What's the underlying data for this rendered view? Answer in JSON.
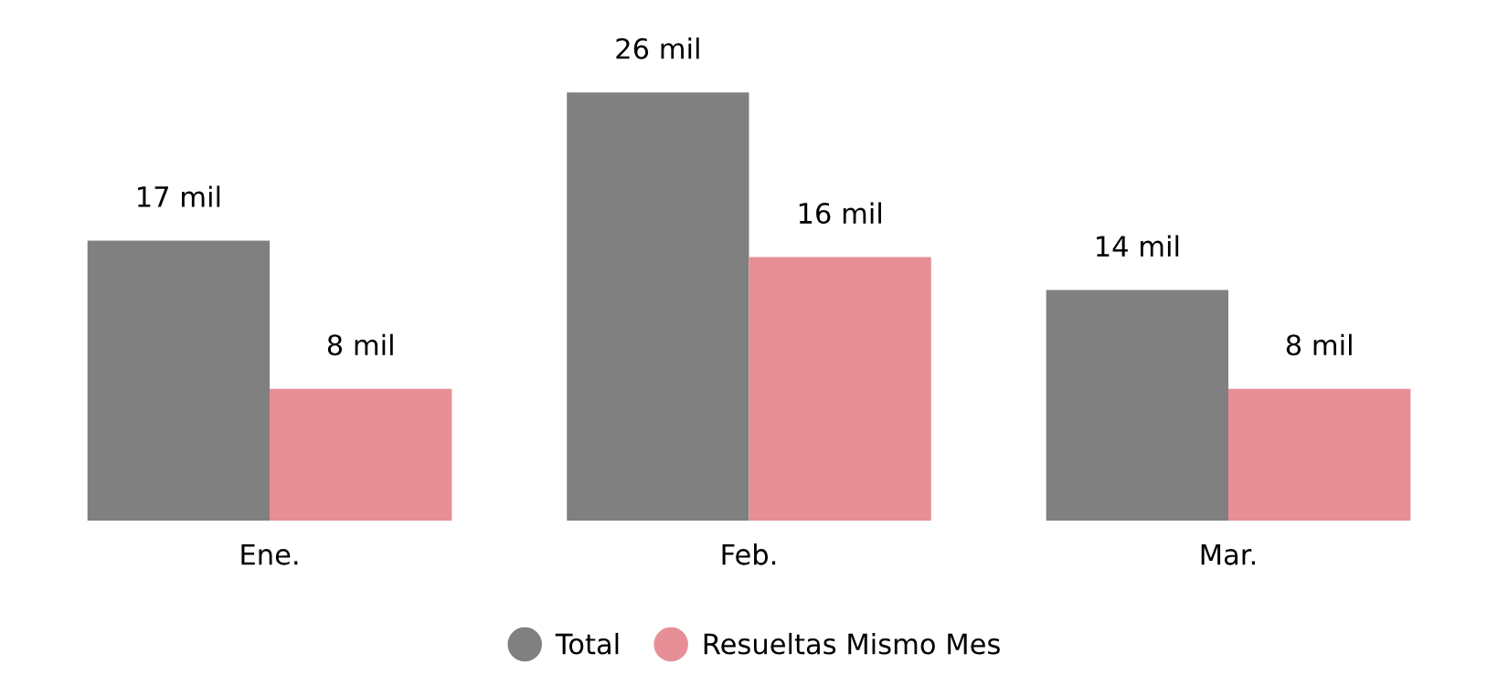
{
  "chart_data": {
    "type": "bar",
    "categories": [
      "Ene.",
      "Feb.",
      "Mar."
    ],
    "series": [
      {
        "name": "Total",
        "color": "#808080",
        "values": [
          17,
          26,
          14
        ],
        "value_labels": [
          "17 mil",
          "26 mil",
          "14 mil"
        ]
      },
      {
        "name": "Resueltas Mismo Mes",
        "color": "#e68f96",
        "values": [
          8,
          16,
          8
        ],
        "value_labels": [
          "8 mil",
          "16 mil",
          "8 mil"
        ]
      }
    ],
    "legend": "bottom",
    "grid": false
  }
}
